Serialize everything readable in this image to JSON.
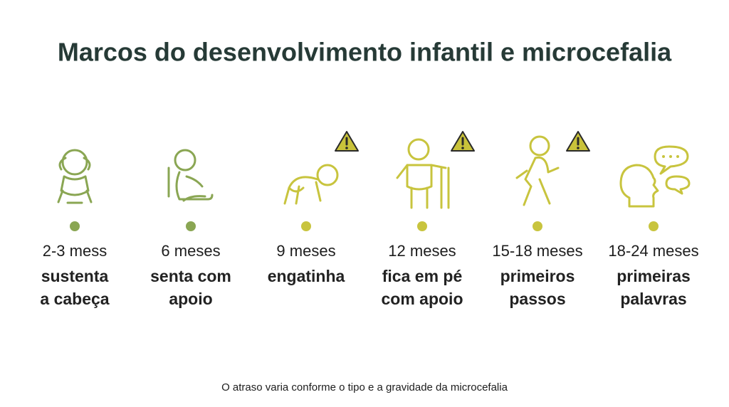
{
  "header": {
    "title": "Marcos do desenvolvimento infantil e microcefalia"
  },
  "milestones": [
    {
      "age": "2-3 mess",
      "label": [
        "sustenta",
        "a cabeça"
      ],
      "color": "#8aa653",
      "warning": false
    },
    {
      "age": "6 meses",
      "label": [
        "senta com",
        "apoio"
      ],
      "color": "#8aa653",
      "warning": false
    },
    {
      "age": "9 meses",
      "label": [
        "engatinha"
      ],
      "color": "#c8c43e",
      "warning": true
    },
    {
      "age": "12 meses",
      "label": [
        "fica em pé",
        "com apoio"
      ],
      "color": "#c8c43e",
      "warning": true
    },
    {
      "age": "15-18 meses",
      "label": [
        "primeiros",
        "passos"
      ],
      "color": "#c8c43e",
      "warning": true
    },
    {
      "age": "18-24 meses",
      "label": [
        "primeiras",
        "palavras"
      ],
      "color": "#c8c43e",
      "warning": false
    }
  ],
  "footnote": "O atraso varia conforme o tipo e a gravidade da microcefalia"
}
